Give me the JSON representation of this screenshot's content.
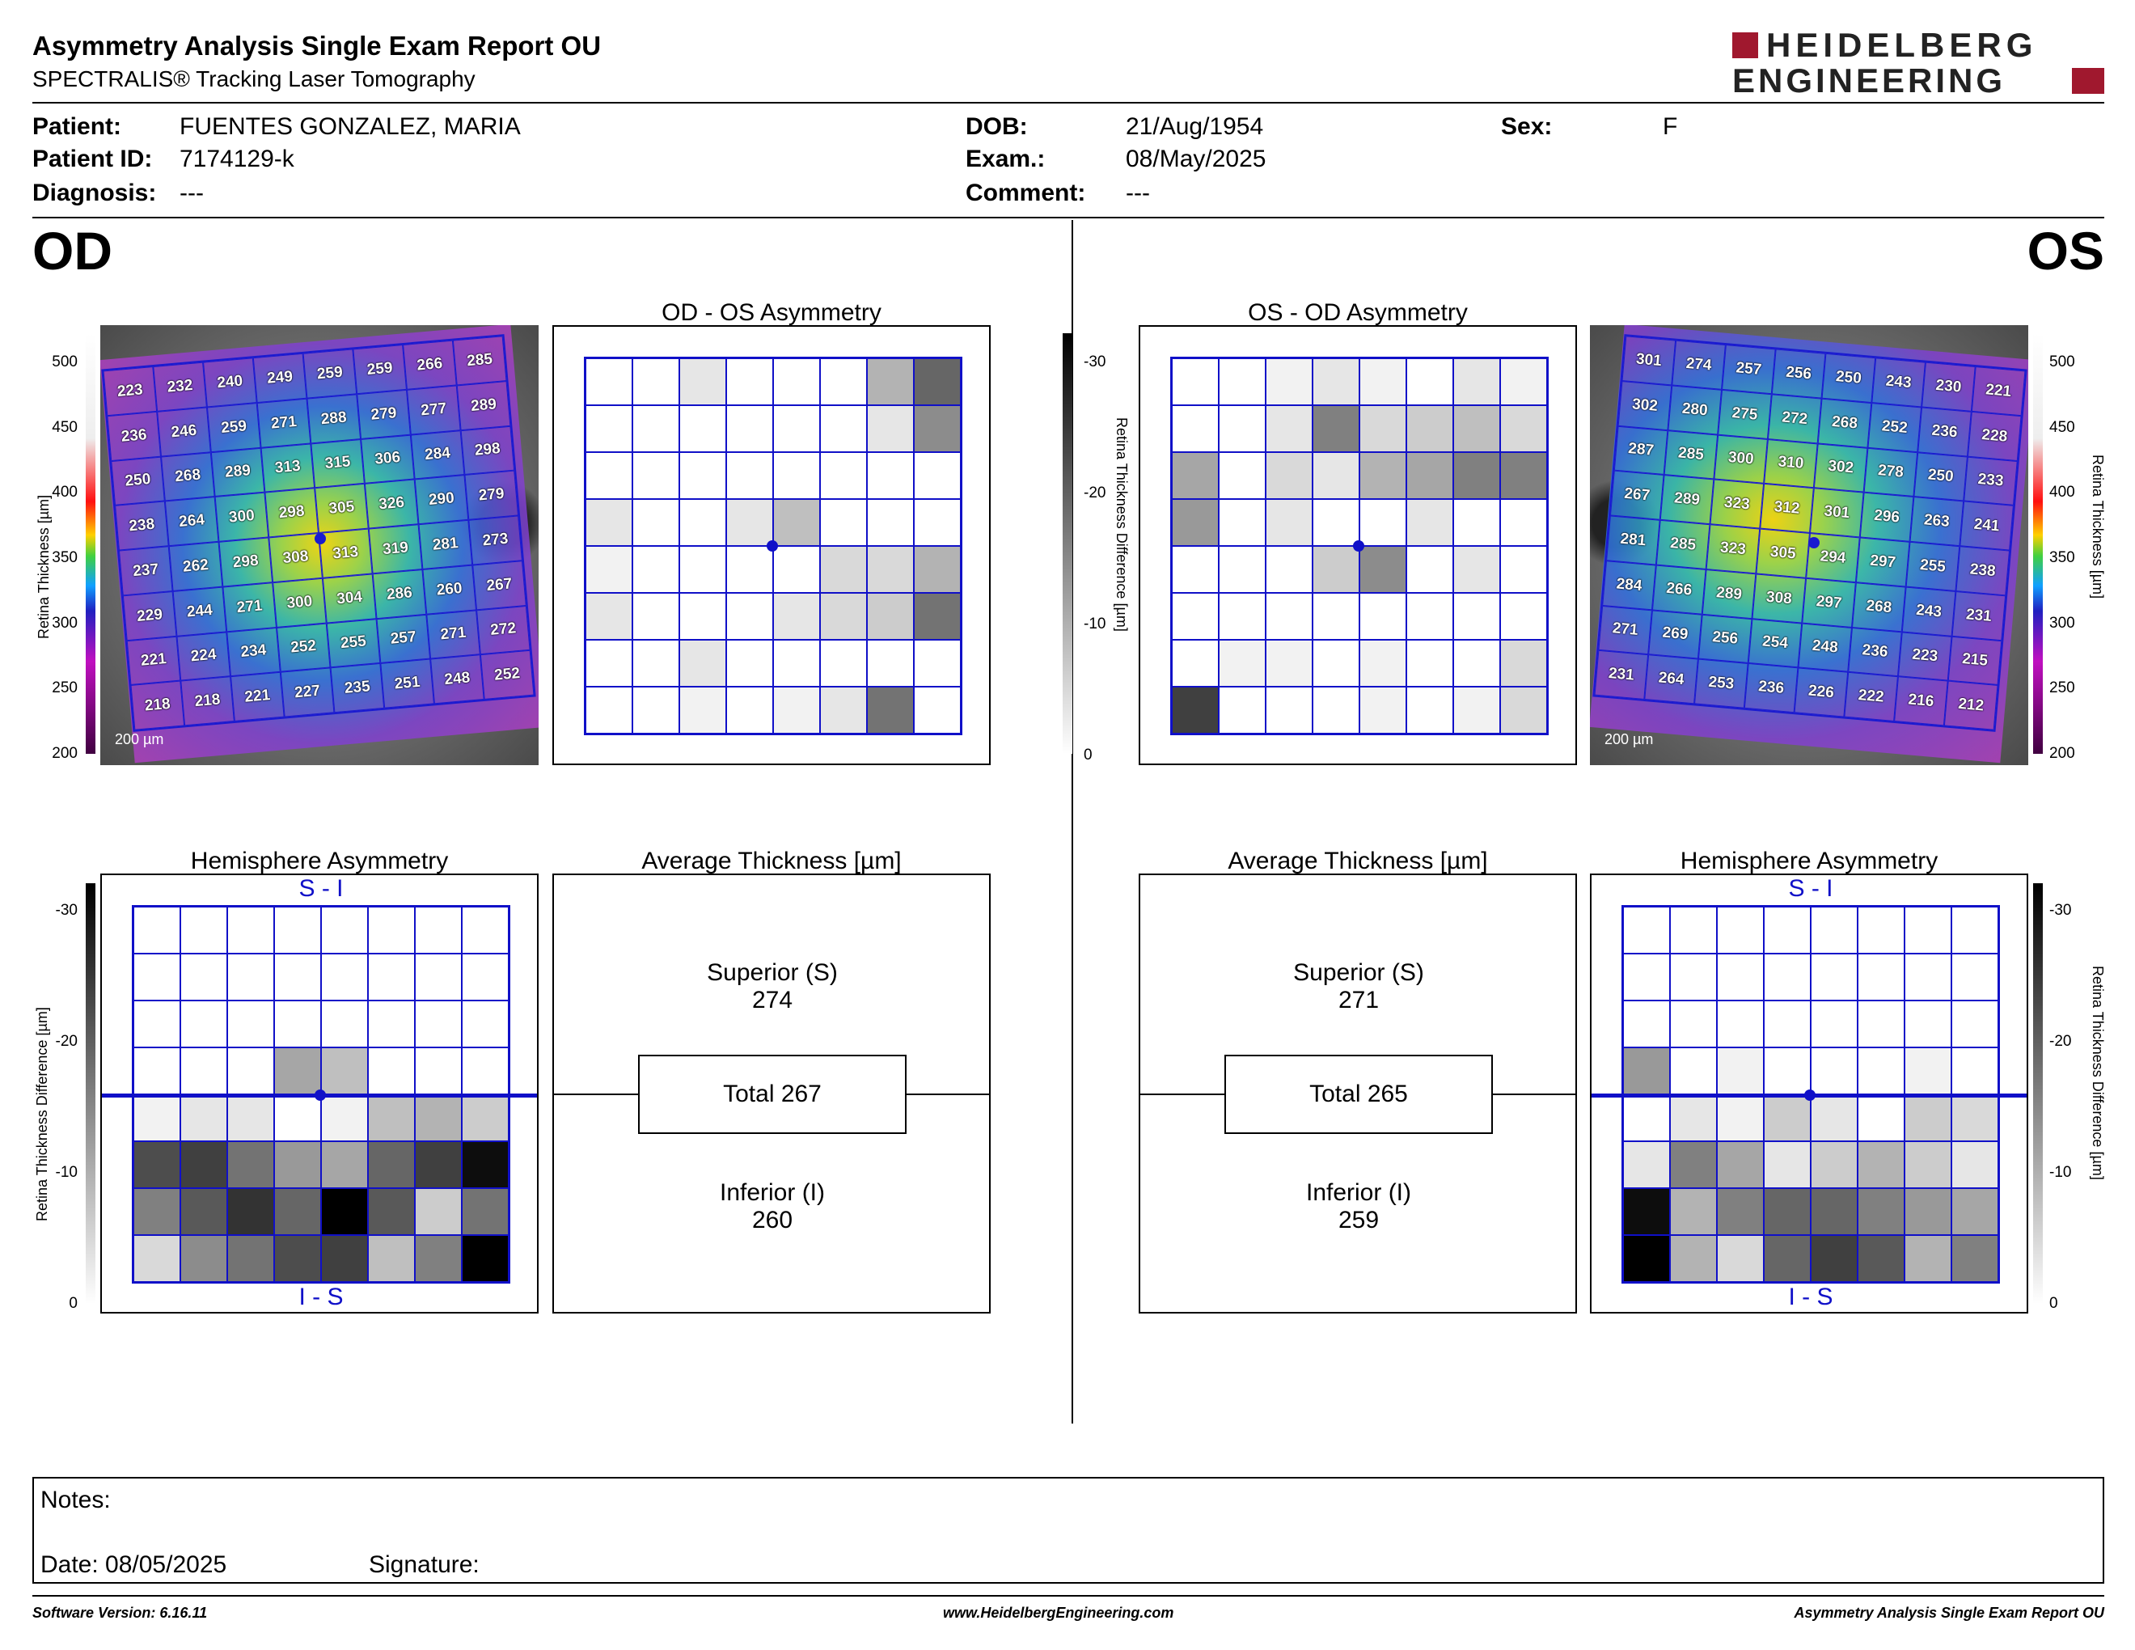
{
  "header": {
    "title": "Asymmetry Analysis Single Exam Report OU",
    "subtitle": "SPECTRALIS® Tracking Laser Tomography",
    "logo_line1": "HEIDELBERG",
    "logo_line2": "ENGINEERING"
  },
  "patient": {
    "patient_label": "Patient:",
    "patient_value": "FUENTES GONZALEZ, MARIA",
    "id_label": "Patient ID:",
    "id_value": "7174129-k",
    "diag_label": "Diagnosis:",
    "diag_value": "---",
    "dob_label": "DOB:",
    "dob_value": "21/Aug/1954",
    "exam_label": "Exam.:",
    "exam_value": "08/May/2025",
    "comment_label": "Comment:",
    "comment_value": "---",
    "sex_label": "Sex:",
    "sex_value": "F"
  },
  "od": {
    "eye": "OD",
    "asym_title": "OD - OS Asymmetry",
    "hemi_title": "Hemisphere Asymmetry",
    "avg_title": "Average Thickness [µm]",
    "superior_label": "Superior (S)",
    "superior_value": "274",
    "total": "Total 267",
    "inferior_label": "Inferior (I)",
    "inferior_value": "260",
    "hemi_top": "S - I",
    "hemi_bottom": "I - S",
    "scale_bar": "200 µm",
    "thickness": [
      [
        223,
        232,
        240,
        249,
        259,
        259,
        266,
        285
      ],
      [
        236,
        246,
        259,
        271,
        288,
        279,
        277,
        289
      ],
      [
        250,
        268,
        289,
        313,
        315,
        306,
        284,
        298
      ],
      [
        238,
        264,
        300,
        298,
        305,
        326,
        290,
        279
      ],
      [
        237,
        262,
        298,
        308,
        313,
        319,
        281,
        273
      ],
      [
        229,
        244,
        271,
        300,
        304,
        286,
        260,
        267
      ],
      [
        221,
        224,
        234,
        252,
        255,
        257,
        271,
        272
      ],
      [
        218,
        218,
        221,
        227,
        235,
        251,
        248,
        252
      ]
    ],
    "asym_gray": [
      [
        0,
        0,
        0.1,
        0,
        0,
        0,
        0.3,
        0.6
      ],
      [
        0,
        0,
        0,
        0,
        0,
        0,
        0.1,
        0.45
      ],
      [
        0,
        0,
        0,
        0,
        0,
        0,
        0,
        0
      ],
      [
        0.1,
        0,
        0,
        0.1,
        0.25,
        0,
        0,
        0
      ],
      [
        0.05,
        0,
        0,
        0,
        0,
        0.15,
        0.15,
        0.3
      ],
      [
        0.1,
        0,
        0,
        0,
        0.1,
        0.15,
        0.2,
        0.55
      ],
      [
        0,
        0,
        0.1,
        0,
        0,
        0,
        0,
        0
      ],
      [
        0,
        0,
        0.05,
        0,
        0.05,
        0.1,
        0.55,
        0
      ]
    ],
    "hemi_gray": [
      [
        0,
        0,
        0,
        0,
        0,
        0,
        0,
        0
      ],
      [
        0,
        0,
        0,
        0,
        0,
        0,
        0,
        0
      ],
      [
        0,
        0,
        0,
        0,
        0,
        0,
        0,
        0
      ],
      [
        0,
        0,
        0,
        0.35,
        0.25,
        0,
        0,
        0
      ],
      [
        0.05,
        0.1,
        0.1,
        0,
        0.05,
        0.25,
        0.3,
        0.2
      ],
      [
        0.7,
        0.75,
        0.55,
        0.4,
        0.35,
        0.6,
        0.75,
        0.95
      ],
      [
        0.5,
        0.65,
        0.8,
        0.6,
        1.0,
        0.65,
        0.2,
        0.55
      ],
      [
        0.15,
        0.45,
        0.55,
        0.7,
        0.75,
        0.25,
        0.5,
        1.0
      ]
    ]
  },
  "os": {
    "eye": "OS",
    "asym_title": "OS - OD Asymmetry",
    "hemi_title": "Hemisphere Asymmetry",
    "avg_title": "Average Thickness [µm]",
    "superior_label": "Superior (S)",
    "superior_value": "271",
    "total": "Total 265",
    "inferior_label": "Inferior (I)",
    "inferior_value": "259",
    "hemi_top": "S - I",
    "hemi_bottom": "I - S",
    "scale_bar": "200 µm",
    "thickness": [
      [
        301,
        274,
        257,
        256,
        250,
        243,
        230,
        221
      ],
      [
        302,
        280,
        275,
        272,
        268,
        252,
        236,
        228
      ],
      [
        287,
        285,
        300,
        310,
        302,
        278,
        250,
        233
      ],
      [
        267,
        289,
        323,
        312,
        301,
        296,
        263,
        241
      ],
      [
        281,
        285,
        323,
        305,
        294,
        297,
        255,
        238
      ],
      [
        284,
        266,
        289,
        308,
        297,
        268,
        243,
        231
      ],
      [
        271,
        269,
        256,
        254,
        248,
        236,
        223,
        215
      ],
      [
        231,
        264,
        253,
        236,
        226,
        222,
        216,
        212
      ]
    ],
    "asym_gray": [
      [
        0,
        0,
        0.05,
        0.1,
        0.05,
        0,
        0.1,
        0.05
      ],
      [
        0,
        0,
        0.1,
        0.5,
        0.15,
        0.2,
        0.25,
        0.15
      ],
      [
        0.35,
        0,
        0.15,
        0.1,
        0.3,
        0.35,
        0.5,
        0.5
      ],
      [
        0.4,
        0,
        0.1,
        0,
        0,
        0.1,
        0,
        0
      ],
      [
        0,
        0,
        0,
        0.2,
        0.45,
        0,
        0.1,
        0
      ],
      [
        0,
        0,
        0,
        0,
        0,
        0,
        0,
        0
      ],
      [
        0,
        0.05,
        0.05,
        0,
        0.05,
        0,
        0,
        0.15
      ],
      [
        0.75,
        0,
        0,
        0,
        0.05,
        0,
        0.05,
        0.15
      ]
    ],
    "hemi_gray": [
      [
        0,
        0,
        0,
        0,
        0,
        0,
        0,
        0
      ],
      [
        0,
        0,
        0,
        0,
        0,
        0,
        0,
        0
      ],
      [
        0,
        0,
        0,
        0,
        0,
        0,
        0,
        0
      ],
      [
        0.4,
        0,
        0.05,
        0,
        0,
        0,
        0.05,
        0
      ],
      [
        0,
        0.1,
        0.05,
        0.2,
        0.1,
        0,
        0.2,
        0.15
      ],
      [
        0.1,
        0.5,
        0.35,
        0.1,
        0.2,
        0.3,
        0.2,
        0.1
      ],
      [
        0.95,
        0.3,
        0.5,
        0.6,
        0.6,
        0.5,
        0.4,
        0.35
      ],
      [
        1.0,
        0.3,
        0.15,
        0.6,
        0.75,
        0.65,
        0.3,
        0.5
      ]
    ]
  },
  "scales": {
    "thickness_label": "Retina Thickness [µm]",
    "thickness_ticks": [
      "500",
      "450",
      "400",
      "350",
      "300",
      "250",
      "200"
    ],
    "diff_label": "Retina Thickness Difference [µm]",
    "diff_ticks": [
      "-30",
      "-20",
      "-10",
      "0"
    ]
  },
  "notes": {
    "notes_label": "Notes:",
    "date_label": "Date: 08/05/2025",
    "signature_label": "Signature:"
  },
  "footer": {
    "software": "Software Version: 6.16.11",
    "website": "www.HeidelbergEngineering.com",
    "report": "Asymmetry Analysis Single Exam Report OU"
  }
}
